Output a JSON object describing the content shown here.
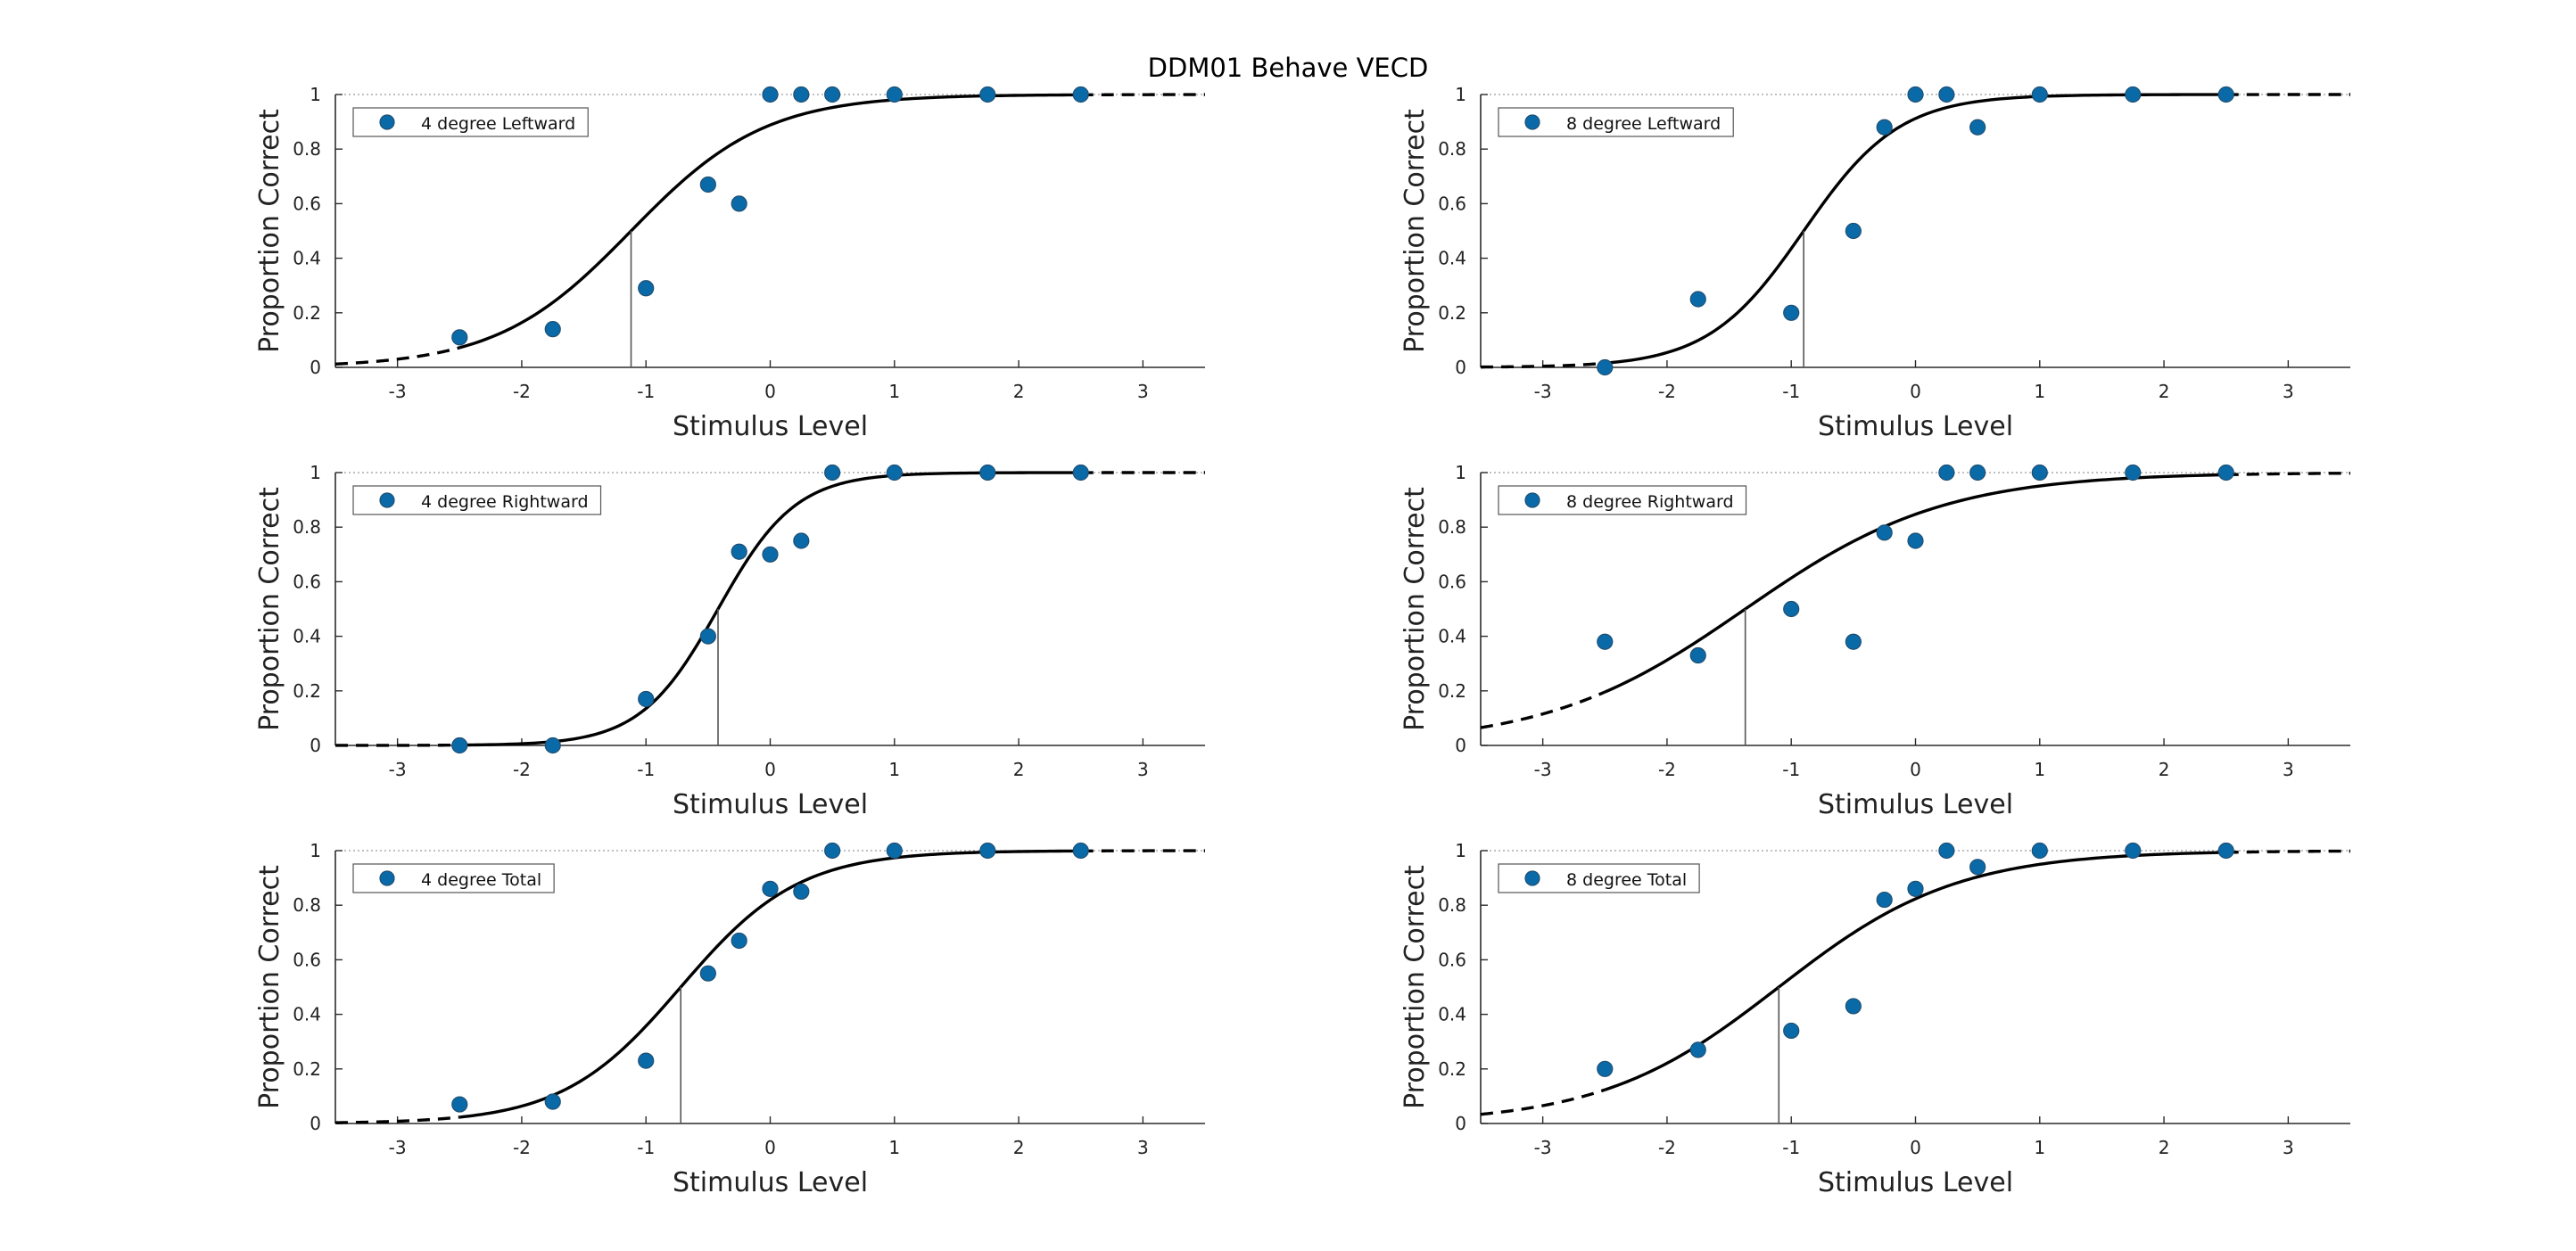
{
  "figure": {
    "title": "DDM01 Behave VECD",
    "colors": {
      "point": "#0a6aa8",
      "point_edge": "#1f4f73",
      "curve": "#000000",
      "axis": "#2b2b2b",
      "threshold": "#555555",
      "ref_line": "#9a9a9a"
    }
  },
  "chart_data": [
    {
      "type": "scatter",
      "xlabel": "Stimulus Level",
      "ylabel": "Proportion Correct",
      "xlim": [
        -3.5,
        3.5
      ],
      "ylim": [
        0,
        1
      ],
      "xticks": [
        -3,
        -2,
        -1,
        0,
        1,
        2,
        3
      ],
      "yticks": [
        0,
        0.2,
        0.4,
        0.6,
        0.8,
        1
      ],
      "legend_placement": "top-left",
      "series": [
        {
          "name": "4 degree Leftward",
          "x": [
            -2.5,
            -1.75,
            -1,
            -0.5,
            -0.25,
            0,
            0.25,
            0.5,
            1,
            1.75,
            2.5
          ],
          "y": [
            0.11,
            0.14,
            0.29,
            0.67,
            0.6,
            1,
            1,
            1,
            1,
            1,
            1
          ]
        }
      ],
      "fit": {
        "threshold": -1.12,
        "slope": 1.85
      }
    },
    {
      "type": "scatter",
      "xlabel": "Stimulus Level",
      "ylabel": "Proportion Correct",
      "xlim": [
        -3.5,
        3.5
      ],
      "ylim": [
        0,
        1
      ],
      "xticks": [
        -3,
        -2,
        -1,
        0,
        1,
        2,
        3
      ],
      "yticks": [
        0,
        0.2,
        0.4,
        0.6,
        0.8,
        1
      ],
      "legend_placement": "top-left",
      "series": [
        {
          "name": "8 degree Leftward",
          "x": [
            -2.5,
            -1.75,
            -1,
            -0.5,
            -0.25,
            0,
            0.25,
            0.5,
            1,
            1.75,
            2.5
          ],
          "y": [
            0,
            0.25,
            0.2,
            0.5,
            0.88,
            1,
            1,
            0.88,
            1,
            1,
            1
          ]
        }
      ],
      "fit": {
        "threshold": -0.9,
        "slope": 2.6
      }
    },
    {
      "type": "scatter",
      "xlabel": "Stimulus Level",
      "ylabel": "Proportion Correct",
      "xlim": [
        -3.5,
        3.5
      ],
      "ylim": [
        0,
        1
      ],
      "xticks": [
        -3,
        -2,
        -1,
        0,
        1,
        2,
        3
      ],
      "yticks": [
        0,
        0.2,
        0.4,
        0.6,
        0.8,
        1
      ],
      "legend_placement": "top-left",
      "series": [
        {
          "name": "4 degree Rightward",
          "x": [
            -2.5,
            -1.75,
            -1,
            -0.5,
            -0.25,
            0,
            0.25,
            0.5,
            1,
            1.75,
            2.5
          ],
          "y": [
            0,
            0,
            0.17,
            0.4,
            0.71,
            0.7,
            0.75,
            1,
            1,
            1,
            1
          ]
        }
      ],
      "fit": {
        "threshold": -0.42,
        "slope": 3.2
      }
    },
    {
      "type": "scatter",
      "xlabel": "Stimulus Level",
      "ylabel": "Proportion Correct",
      "xlim": [
        -3.5,
        3.5
      ],
      "ylim": [
        0,
        1
      ],
      "xticks": [
        -3,
        -2,
        -1,
        0,
        1,
        2,
        3
      ],
      "yticks": [
        0,
        0.2,
        0.4,
        0.6,
        0.8,
        1
      ],
      "legend_placement": "top-left",
      "series": [
        {
          "name": "8 degree Rightward",
          "x": [
            -2.5,
            -1.75,
            -1,
            -0.5,
            -0.25,
            0,
            0.25,
            0.5,
            1,
            1.75,
            2.5
          ],
          "y": [
            0.38,
            0.33,
            0.5,
            0.38,
            0.78,
            0.75,
            1,
            1,
            1,
            1,
            1
          ]
        }
      ],
      "fit": {
        "threshold": -1.37,
        "slope": 1.25
      }
    },
    {
      "type": "scatter",
      "xlabel": "Stimulus Level",
      "ylabel": "Proportion Correct",
      "xlim": [
        -3.5,
        3.5
      ],
      "ylim": [
        0,
        1
      ],
      "xticks": [
        -3,
        -2,
        -1,
        0,
        1,
        2,
        3
      ],
      "yticks": [
        0,
        0.2,
        0.4,
        0.6,
        0.8,
        1
      ],
      "legend_placement": "top-left",
      "series": [
        {
          "name": "4 degree Total",
          "x": [
            -2.5,
            -1.75,
            -1,
            -0.5,
            -0.25,
            0,
            0.25,
            0.5,
            1,
            1.75,
            2.5
          ],
          "y": [
            0.07,
            0.08,
            0.23,
            0.55,
            0.67,
            0.86,
            0.85,
            1,
            1,
            1,
            1
          ]
        }
      ],
      "fit": {
        "threshold": -0.72,
        "slope": 2.1
      }
    },
    {
      "type": "scatter",
      "xlabel": "Stimulus Level",
      "ylabel": "Proportion Correct",
      "xlim": [
        -3.5,
        3.5
      ],
      "ylim": [
        0,
        1
      ],
      "xticks": [
        -3,
        -2,
        -1,
        0,
        1,
        2,
        3
      ],
      "yticks": [
        0,
        0.2,
        0.4,
        0.6,
        0.8,
        1
      ],
      "legend_placement": "top-left",
      "series": [
        {
          "name": "8 degree Total",
          "x": [
            -2.5,
            -1.75,
            -1,
            -0.5,
            -0.25,
            0,
            0.25,
            0.5,
            1,
            1.75,
            2.5
          ],
          "y": [
            0.2,
            0.27,
            0.34,
            0.43,
            0.82,
            0.86,
            1,
            0.94,
            1,
            1,
            1
          ]
        }
      ],
      "fit": {
        "threshold": -1.1,
        "slope": 1.4
      }
    }
  ]
}
